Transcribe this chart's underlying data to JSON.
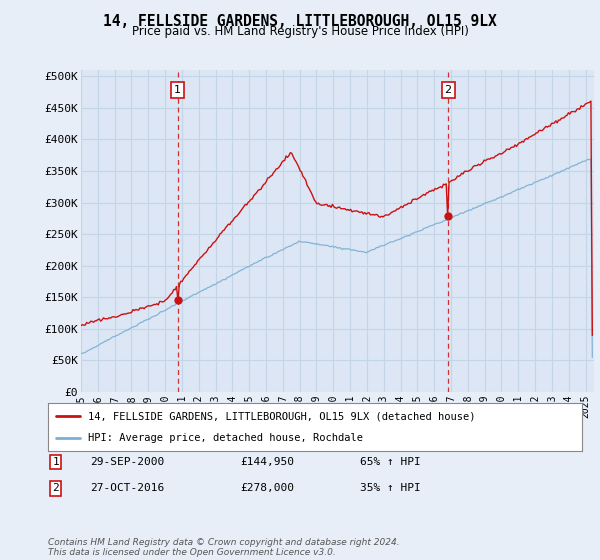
{
  "title": "14, FELLSIDE GARDENS, LITTLEBOROUGH, OL15 9LX",
  "subtitle": "Price paid vs. HM Land Registry's House Price Index (HPI)",
  "background_color": "#e8eef8",
  "plot_bg_color": "#dce6f5",
  "ylabel_ticks": [
    "£0",
    "£50K",
    "£100K",
    "£150K",
    "£200K",
    "£250K",
    "£300K",
    "£350K",
    "£400K",
    "£450K",
    "£500K"
  ],
  "ytick_values": [
    0,
    50000,
    100000,
    150000,
    200000,
    250000,
    300000,
    350000,
    400000,
    450000,
    500000
  ],
  "ylim": [
    0,
    510000
  ],
  "xlim_start": 1995.0,
  "xlim_end": 2025.5,
  "sale1_date": 2000.75,
  "sale1_price": 144950,
  "sale1_label": "1",
  "sale2_date": 2016.83,
  "sale2_price": 278000,
  "sale2_label": "2",
  "legend_line1": "14, FELLSIDE GARDENS, LITTLEBOROUGH, OL15 9LX (detached house)",
  "legend_line2": "HPI: Average price, detached house, Rochdale",
  "table_row1_num": "1",
  "table_row1_date": "29-SEP-2000",
  "table_row1_price": "£144,950",
  "table_row1_hpi": "65% ↑ HPI",
  "table_row2_num": "2",
  "table_row2_date": "27-OCT-2016",
  "table_row2_price": "£278,000",
  "table_row2_hpi": "35% ↑ HPI",
  "footer": "Contains HM Land Registry data © Crown copyright and database right 2024.\nThis data is licensed under the Open Government Licence v3.0.",
  "hpi_color": "#7aafd4",
  "price_color": "#cc1111",
  "dashed_line_color": "#cc1111",
  "grid_color": "#c5d5e8",
  "label_box_color": "#cc1111"
}
